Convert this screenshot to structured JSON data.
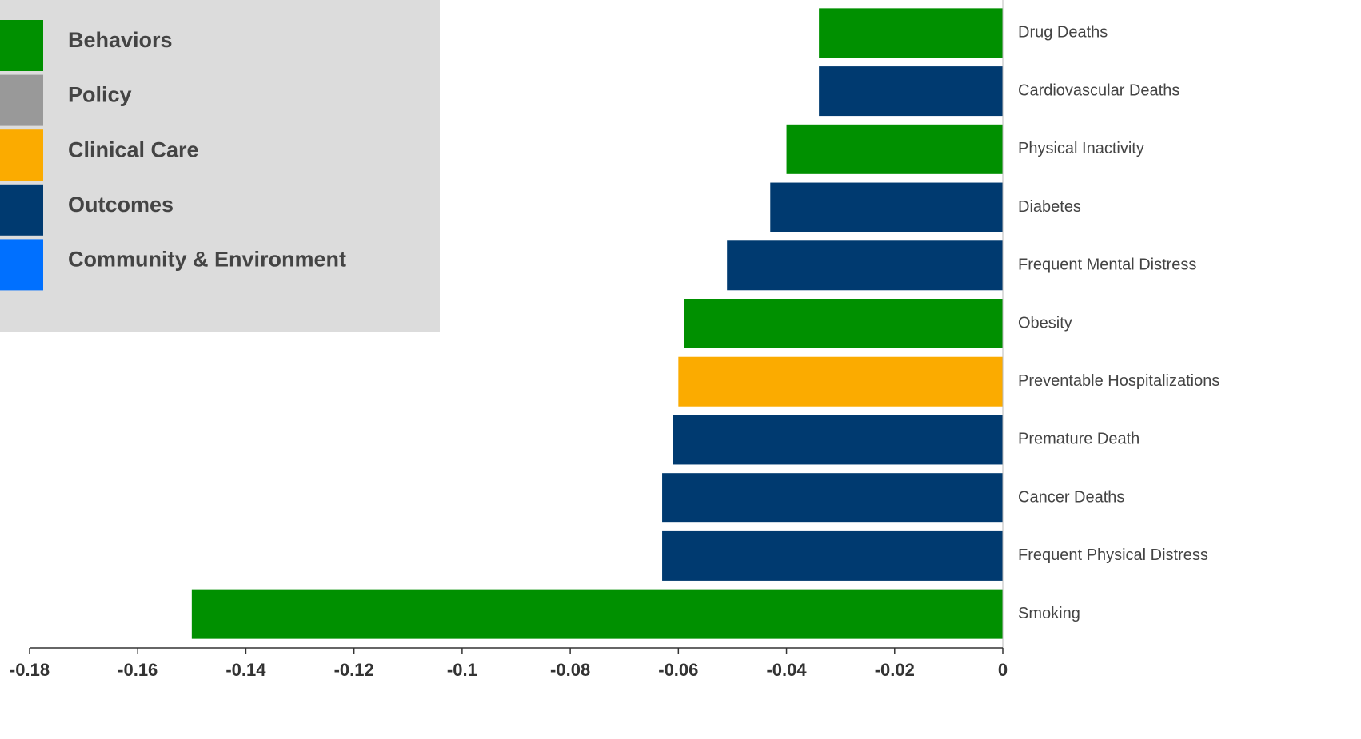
{
  "chart_data": {
    "type": "barh",
    "categories": [
      "Drug Deaths",
      "Cardiovascular Deaths",
      "Physical Inactivity",
      "Diabetes",
      "Frequent Mental Distress",
      "Obesity",
      "Preventable Hospitalizations",
      "Premature Death",
      "Cancer Deaths",
      "Frequent Physical Distress",
      "Smoking"
    ],
    "values": [
      -0.034,
      -0.034,
      -0.04,
      -0.043,
      -0.051,
      -0.059,
      -0.06,
      -0.061,
      -0.063,
      -0.063,
      -0.15
    ],
    "colors": [
      "#009000",
      "#003a70",
      "#009000",
      "#003a70",
      "#003a70",
      "#009000",
      "#fbab00",
      "#003a70",
      "#003a70",
      "#003a70",
      "#009000"
    ],
    "xlim": [
      -0.18,
      0
    ],
    "xticks": [
      -0.18,
      -0.16,
      -0.14,
      -0.12,
      -0.1,
      -0.08,
      -0.06,
      -0.04,
      -0.02,
      0
    ],
    "legend": [
      {
        "name": "Behaviors",
        "color": "#009000"
      },
      {
        "name": "Policy",
        "color": "#999999"
      },
      {
        "name": "Clinical Care",
        "color": "#fbab00"
      },
      {
        "name": "Outcomes",
        "color": "#003a70"
      },
      {
        "name": "Community & Environment",
        "color": "#0070ff"
      }
    ],
    "legend_position": "upper left"
  }
}
